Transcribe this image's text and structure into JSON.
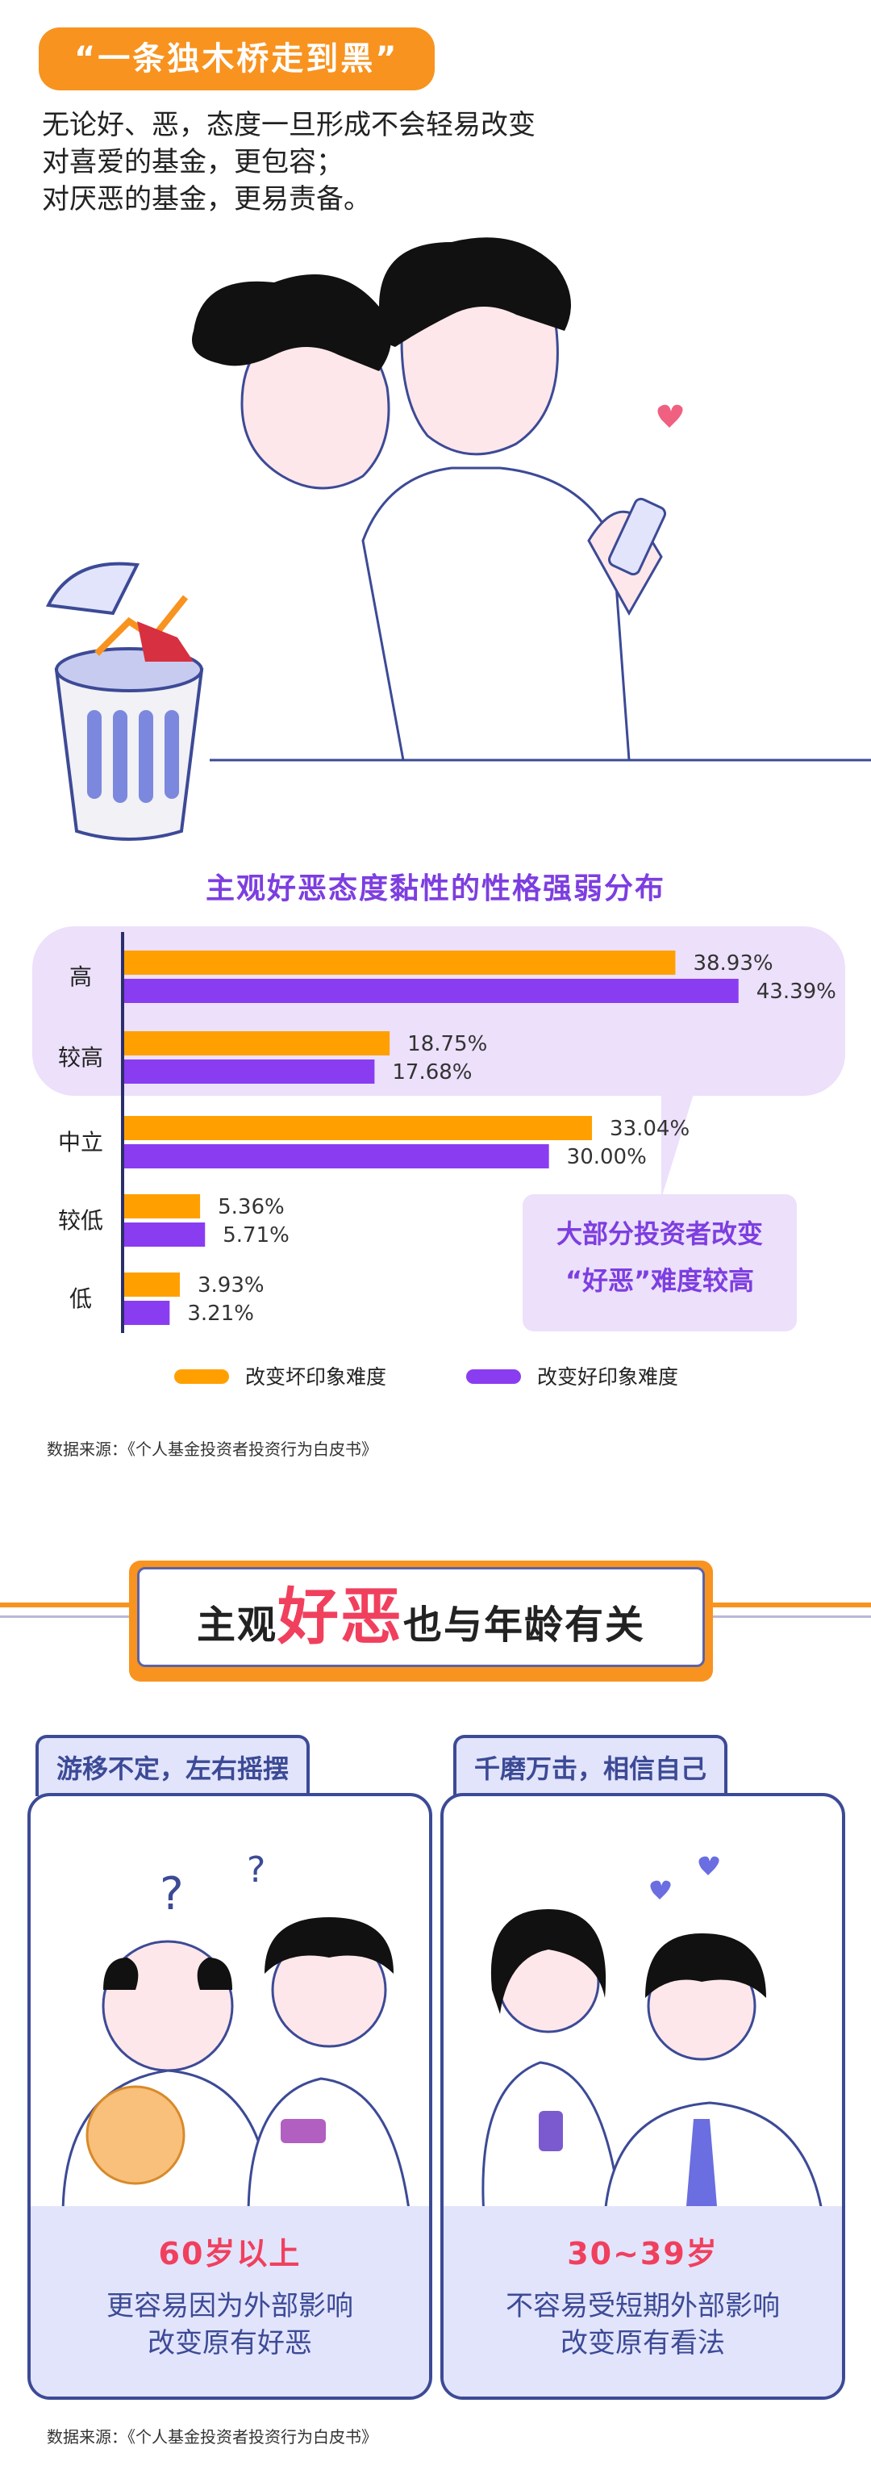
{
  "section1": {
    "tag": "“一条独木桥走到黑”",
    "intro": [
      "无论好、恶，态度一旦形成不会轻易改变",
      "对喜爱的基金，更包容；",
      "对厌恶的基金，更易责备。"
    ]
  },
  "chart_data": {
    "type": "bar",
    "title": "主观好恶态度黏性的性格强弱分布",
    "categories": [
      "高",
      "较高",
      "中立",
      "较低",
      "低"
    ],
    "series": [
      {
        "name": "改变坏印象难度",
        "values": [
          38.93,
          18.75,
          33.04,
          5.36,
          3.93
        ],
        "labels": [
          "38.93%",
          "18.75%",
          "33.04%",
          "5.36%",
          "3.93%"
        ],
        "color": "#ffa000"
      },
      {
        "name": "改变好印象难度",
        "values": [
          43.39,
          17.68,
          30.0,
          5.71,
          3.21
        ],
        "labels": [
          "43.39%",
          "17.68%",
          "30.00%",
          "5.71%",
          "3.21%"
        ],
        "color": "#8a3df0"
      }
    ],
    "xlim": [
      0,
      45
    ],
    "orientation": "horizontal",
    "legend_position": "bottom",
    "callout": [
      "大部分投资者改变",
      "“好恶”难度较高"
    ],
    "colors": {
      "highlight_bg": "#ece0fb",
      "axis": "#2a2f6b"
    }
  },
  "source1": "数据来源：《个人基金投资者投资行为白皮书》",
  "section2": {
    "banner": {
      "before": "主观",
      "highlight": "好恶",
      "after": "也与年龄有关"
    },
    "panels": [
      {
        "tab": "游移不定，左右摇摆",
        "age": "60岁以上",
        "desc": [
          "更容易因为外部影响",
          "改变原有好恶"
        ]
      },
      {
        "tab": "千磨万击，相信自己",
        "age": "30~39岁",
        "desc": [
          "不容易受短期外部影响",
          "改变原有看法"
        ]
      }
    ]
  },
  "source2": "数据来源：《个人基金投资者投资行为白皮书》",
  "colors": {
    "orange": "#f8931f",
    "purple": "#7d3ee0",
    "navy": "#3c4a96",
    "red": "#f0405e",
    "panel_bg": "#e2e4fb"
  }
}
